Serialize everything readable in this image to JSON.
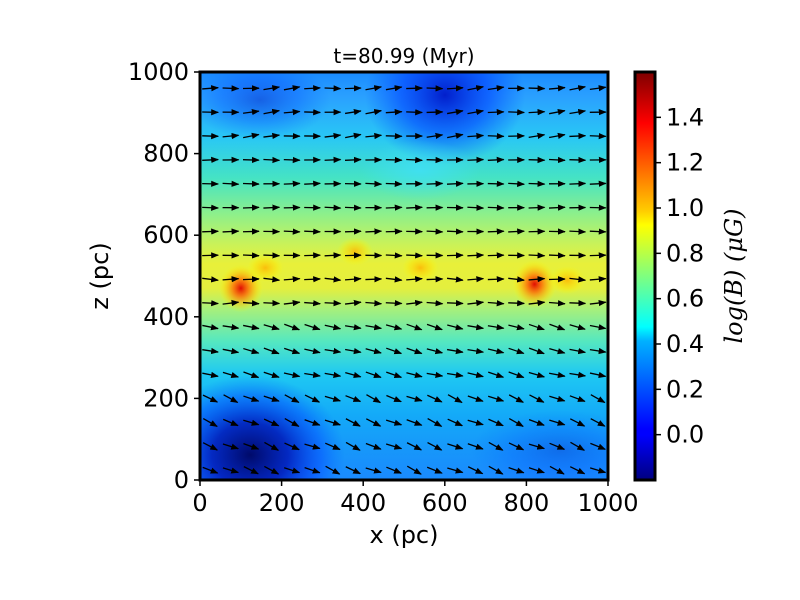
{
  "chart_data": {
    "type": "heatmap",
    "title": "t=80.99 (Myr)",
    "xlabel": "x (pc)",
    "ylabel": "z (pc)",
    "xlim": [
      0,
      1000
    ],
    "ylim": [
      0,
      1000
    ],
    "x_ticks": [
      0,
      200,
      400,
      600,
      800,
      1000
    ],
    "y_ticks": [
      0,
      200,
      400,
      600,
      800,
      1000
    ],
    "colorbar": {
      "label": "log(B) (μG)",
      "colormap": "jet",
      "range": [
        -0.2,
        1.6
      ],
      "ticks": [
        0.0,
        0.2,
        0.4,
        0.6,
        0.8,
        1.0,
        1.2,
        1.4
      ],
      "tick_labels": [
        "0.0",
        "0.2",
        "0.4",
        "0.6",
        "0.8",
        "1.0",
        "1.2",
        "1.4"
      ]
    },
    "field_description": "magnetic field strength map; strongest (yellow-red) in midplane band near z≈500 pc, weakest (dark blue) near z=0 at x<300 and near z≈950 at x≈600",
    "hotspots": [
      {
        "x": 100,
        "z": 470,
        "value": 1.3
      },
      {
        "x": 160,
        "z": 520,
        "value": 1.1
      },
      {
        "x": 380,
        "z": 560,
        "value": 1.0
      },
      {
        "x": 540,
        "z": 520,
        "value": 1.0
      },
      {
        "x": 820,
        "z": 480,
        "value": 1.3
      },
      {
        "x": 900,
        "z": 490,
        "value": 1.1
      }
    ],
    "vectors": "arrows mostly pointing in +x direction; tilted downward (-z) in lower region, slightly upward near top",
    "grid": false
  }
}
